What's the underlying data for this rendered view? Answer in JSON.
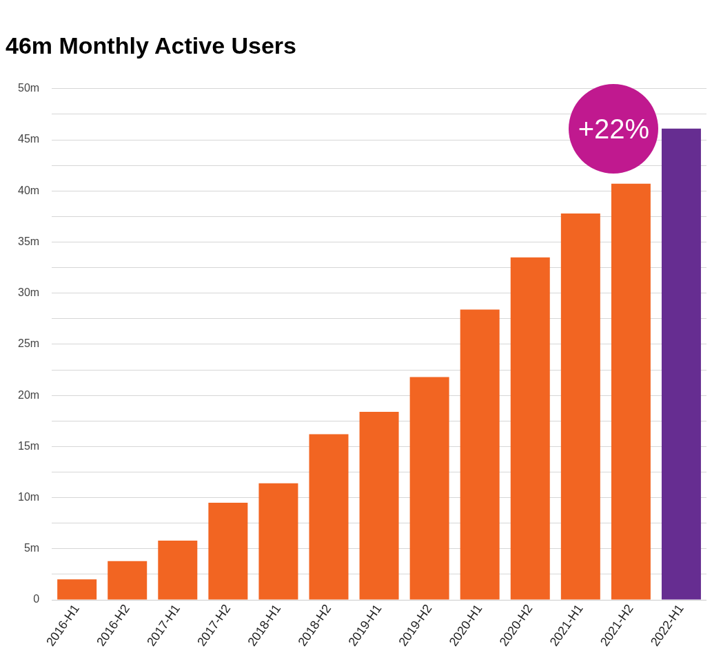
{
  "chart_data": {
    "type": "bar",
    "title": "46m Monthly Active Users",
    "categories": [
      "2016-H1",
      "2016-H2",
      "2017-H1",
      "2017-H2",
      "2018-H1",
      "2018-H2",
      "2019-H1",
      "2019-H2",
      "2020-H1",
      "2020-H2",
      "2021-H1",
      "2021-H2",
      "2022-H1"
    ],
    "values": [
      2.0,
      3.8,
      5.8,
      9.5,
      11.4,
      16.2,
      18.4,
      21.8,
      28.4,
      33.5,
      37.8,
      40.7,
      46.1
    ],
    "colors": [
      "#f26522",
      "#f26522",
      "#f26522",
      "#f26522",
      "#f26522",
      "#f26522",
      "#f26522",
      "#f26522",
      "#f26522",
      "#f26522",
      "#f26522",
      "#f26522",
      "#662d91"
    ],
    "ylim": [
      0,
      50
    ],
    "yticks": [
      0,
      {
        "value": 2.5,
        "label": null
      },
      {
        "value": 5,
        "label": "5m"
      },
      {
        "value": 7.5,
        "label": null
      },
      {
        "value": 10,
        "label": "10m"
      },
      {
        "value": 12.5,
        "label": null
      },
      {
        "value": 15,
        "label": "15m"
      },
      {
        "value": 17.5,
        "label": null
      },
      {
        "value": 20,
        "label": "20m"
      },
      {
        "value": 22.5,
        "label": null
      },
      {
        "value": 25,
        "label": "25m"
      },
      {
        "value": 27.5,
        "label": null
      },
      {
        "value": 30,
        "label": "30m"
      },
      {
        "value": 32.5,
        "label": null
      },
      {
        "value": 35,
        "label": "35m"
      },
      {
        "value": 37.5,
        "label": null
      },
      {
        "value": 40,
        "label": "40m"
      },
      {
        "value": 42.5,
        "label": null
      },
      {
        "value": 45,
        "label": "45m"
      },
      {
        "value": 47.5,
        "label": null
      },
      {
        "value": 50,
        "label": "50m"
      }
    ],
    "grid": "y",
    "legend": false,
    "annotations": [
      "+22%"
    ]
  }
}
